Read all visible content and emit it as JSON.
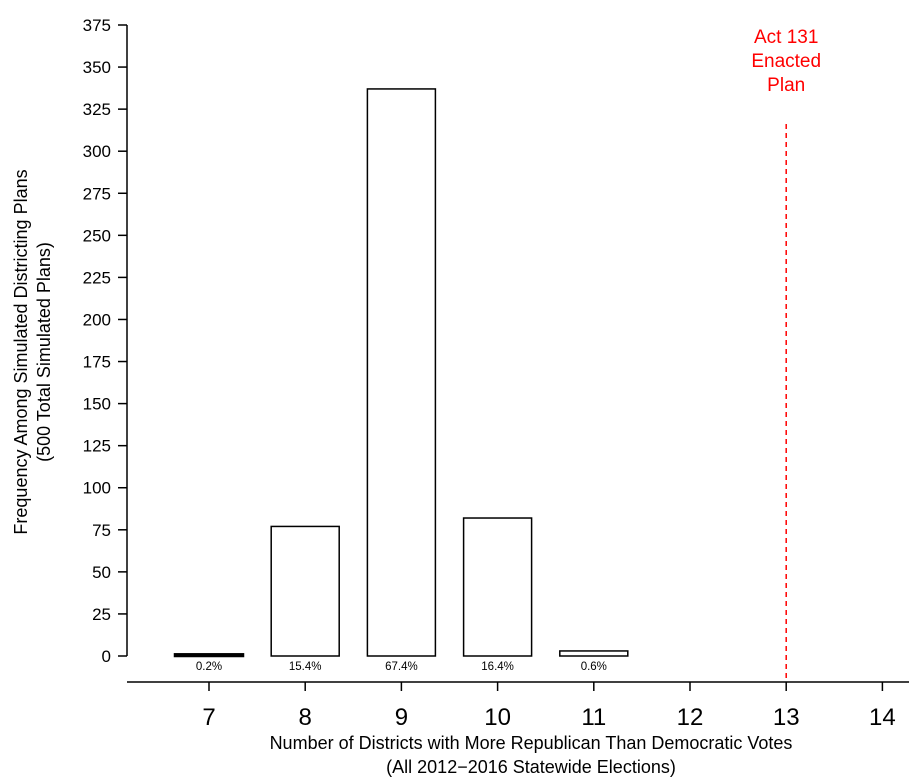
{
  "chart_data": {
    "type": "bar",
    "x": [
      7,
      8,
      9,
      10,
      11,
      12,
      13,
      14
    ],
    "xtick_labels": [
      "7",
      "8",
      "9",
      "10",
      "11",
      "12",
      "13",
      "14"
    ],
    "bars": [
      {
        "x": 7,
        "value": 1,
        "pct_label": "0.2%"
      },
      {
        "x": 8,
        "value": 77,
        "pct_label": "15.4%"
      },
      {
        "x": 9,
        "value": 337,
        "pct_label": "67.4%"
      },
      {
        "x": 10,
        "value": 82,
        "pct_label": "16.4%"
      },
      {
        "x": 11,
        "value": 3,
        "pct_label": "0.6%"
      }
    ],
    "yticks": [
      0,
      25,
      50,
      75,
      100,
      125,
      150,
      175,
      200,
      225,
      250,
      275,
      300,
      325,
      350,
      375
    ],
    "ylim": [
      0,
      375
    ],
    "xlim": [
      7,
      14
    ],
    "ylabel_line1": "Frequency Among Simulated Districting Plans",
    "ylabel_line2": "(500 Total Simulated Plans)",
    "xlabel_line1": "Number of Districts with More Republican Than Democratic Votes",
    "xlabel_line2": "(All 2012−2016 Statewide Elections)",
    "reference_line": {
      "x": 13,
      "label_lines": [
        "Act 131",
        "Enacted",
        "Plan"
      ],
      "color": "#ff0000",
      "style": "dashed"
    },
    "bar_fill": "#ffffff",
    "bar_stroke": "#000000",
    "grid": false
  }
}
